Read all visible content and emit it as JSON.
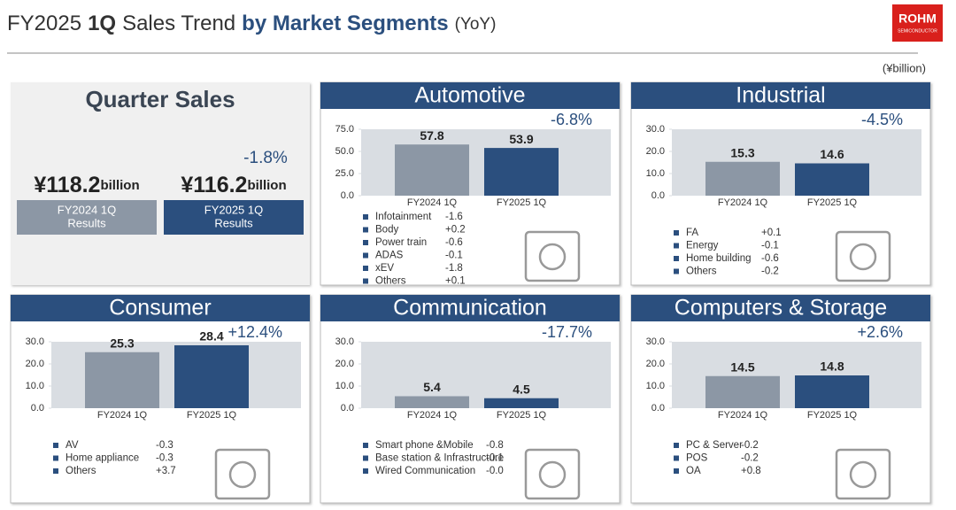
{
  "header": {
    "title_parts": [
      {
        "text": "FY2025",
        "bold": false
      },
      {
        "text": "1Q",
        "bold": true
      },
      {
        "text": "Sales Trend",
        "bold": false
      },
      {
        "text": "by Market Segments",
        "bold": true,
        "color": "#2b4f7e"
      },
      {
        "text": "(YoY)",
        "bold": false,
        "small": true
      }
    ],
    "logo": {
      "name": "ROHM",
      "sub": "SEMICONDUCTOR"
    },
    "unit": "(¥billion)"
  },
  "quarter_sales": {
    "title": "Quarter Sales",
    "change": "-1.8%",
    "items": [
      {
        "amount": "¥118.2",
        "unit": "billion",
        "label": [
          "FY2024 1Q",
          "Results"
        ],
        "color": "#8c97a5"
      },
      {
        "amount": "¥116.2",
        "unit": "billion",
        "label": [
          "FY2025 1Q",
          "Results"
        ],
        "color": "#2b4f7e"
      }
    ]
  },
  "chart_data": [
    {
      "type": "bar",
      "title": "Automotive",
      "categories": [
        "FY2024 1Q",
        "FY2025 1Q"
      ],
      "values": [
        57.8,
        53.9
      ],
      "colors": [
        "#8c97a5",
        "#2b4f7e"
      ],
      "change": "-6.8%",
      "ylim": [
        0,
        75
      ],
      "yticks": [
        {
          "value": 0,
          "label": "0.0"
        },
        {
          "value": 25,
          "label": "25.0"
        },
        {
          "value": 50,
          "label": "50.0"
        },
        {
          "value": 75,
          "label": "75.0"
        }
      ],
      "breakdown": [
        {
          "name": "Infotainment",
          "value": "-1.6"
        },
        {
          "name": "Body",
          "value": "+0.2"
        },
        {
          "name": "Power train",
          "value": "-0.6"
        },
        {
          "name": "ADAS",
          "value": "-0.1"
        },
        {
          "name": "xEV",
          "value": "-1.8"
        },
        {
          "name": "Others",
          "value": "+0.1"
        }
      ]
    },
    {
      "type": "bar",
      "title": "Industrial",
      "categories": [
        "FY2024 1Q",
        "FY2025 1Q"
      ],
      "values": [
        15.3,
        14.6
      ],
      "colors": [
        "#8c97a5",
        "#2b4f7e"
      ],
      "change": "-4.5%",
      "ylim": [
        0,
        30
      ],
      "yticks": [
        {
          "value": 0,
          "label": "0.0"
        },
        {
          "value": 10,
          "label": "10.0"
        },
        {
          "value": 20,
          "label": "20.0"
        },
        {
          "value": 30,
          "label": "30.0"
        }
      ],
      "breakdown": [
        {
          "name": "FA",
          "value": "+0.1"
        },
        {
          "name": "Energy",
          "value": "-0.1"
        },
        {
          "name": "Home building",
          "value": "-0.6"
        },
        {
          "name": "Others",
          "value": "-0.2"
        }
      ]
    },
    {
      "type": "bar",
      "title": "Consumer",
      "categories": [
        "FY2024 1Q",
        "FY2025 1Q"
      ],
      "values": [
        25.3,
        28.4
      ],
      "colors": [
        "#8c97a5",
        "#2b4f7e"
      ],
      "change": "+12.4%",
      "ylim": [
        0,
        30
      ],
      "yticks": [
        {
          "value": 0,
          "label": "0.0"
        },
        {
          "value": 10,
          "label": "10.0"
        },
        {
          "value": 20,
          "label": "20.0"
        },
        {
          "value": 30,
          "label": "30.0"
        }
      ],
      "breakdown": [
        {
          "name": "AV",
          "value": "-0.3"
        },
        {
          "name": "Home appliance",
          "value": "-0.3"
        },
        {
          "name": "Others",
          "value": "+3.7"
        }
      ]
    },
    {
      "type": "bar",
      "title": "Communication",
      "categories": [
        "FY2024 1Q",
        "FY2025 1Q"
      ],
      "values": [
        5.4,
        4.5
      ],
      "colors": [
        "#8c97a5",
        "#2b4f7e"
      ],
      "change": "-17.7%",
      "ylim": [
        0,
        30
      ],
      "yticks": [
        {
          "value": 0,
          "label": "0.0"
        },
        {
          "value": 10,
          "label": "10.0"
        },
        {
          "value": 20,
          "label": "20.0"
        },
        {
          "value": 30,
          "label": "30.0"
        }
      ],
      "breakdown": [
        {
          "name": "Smart phone &Mobile",
          "value": "-0.8"
        },
        {
          "name": "Base station & Infrastructure",
          "value": "-0.1"
        },
        {
          "name": "Wired Communication",
          "value": "-0.0"
        }
      ]
    },
    {
      "type": "bar",
      "title": "Computers & Storage",
      "categories": [
        "FY2024 1Q",
        "FY2025 1Q"
      ],
      "values": [
        14.5,
        14.8
      ],
      "colors": [
        "#8c97a5",
        "#2b4f7e"
      ],
      "change": "+2.6%",
      "ylim": [
        0,
        30
      ],
      "yticks": [
        {
          "value": 0,
          "label": "0.0"
        },
        {
          "value": 10,
          "label": "10.0"
        },
        {
          "value": 20,
          "label": "20.0"
        },
        {
          "value": 30,
          "label": "30.0"
        }
      ],
      "breakdown": [
        {
          "name": "PC & Server",
          "value": "-0.2"
        },
        {
          "name": "POS",
          "value": "-0.2"
        },
        {
          "name": "OA",
          "value": "+0.8"
        }
      ]
    }
  ]
}
